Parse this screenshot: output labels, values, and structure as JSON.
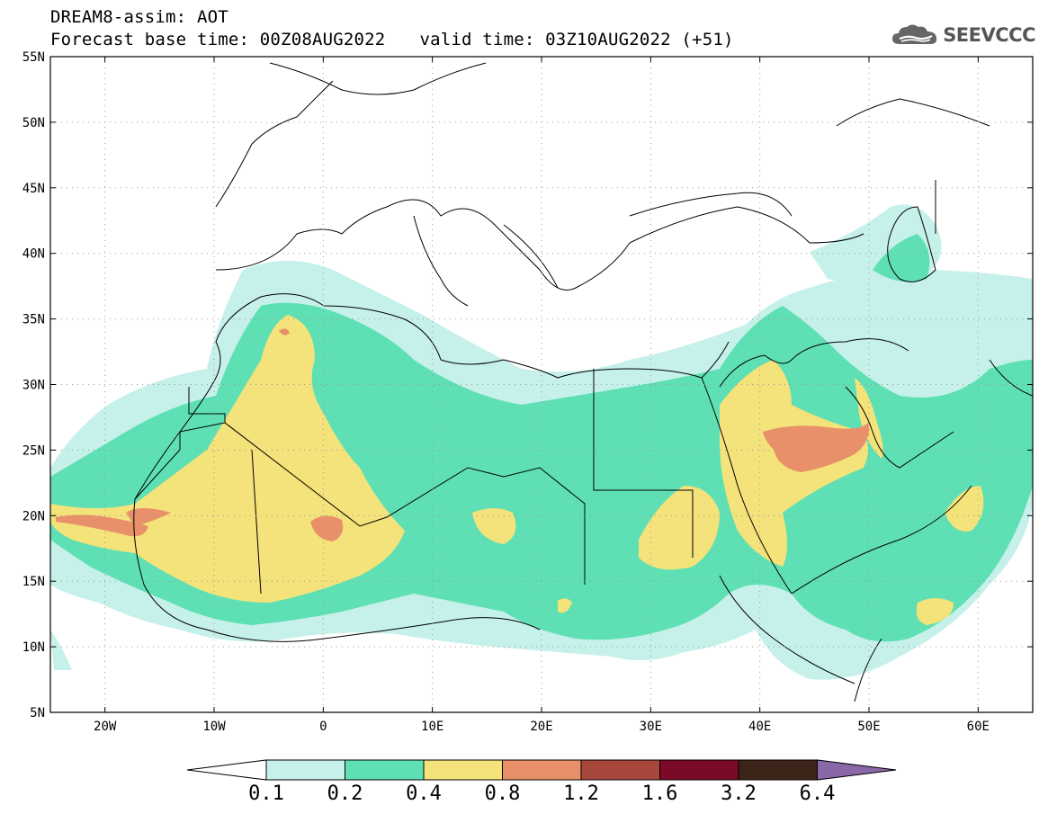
{
  "title": {
    "line1": "DREAM8-assim: AOT",
    "base_time": "Forecast base time: 00Z08AUG2022",
    "valid_time": "valid time: 03Z10AUG2022 (+51)"
  },
  "logo": {
    "text": "SEEVCCC",
    "icon": "cloud-icon"
  },
  "map": {
    "longitude_range": [
      -25,
      65
    ],
    "latitude_range": [
      5,
      55
    ],
    "lon_ticks": [
      {
        "value": -20,
        "label": "20W"
      },
      {
        "value": -10,
        "label": "10W"
      },
      {
        "value": 0,
        "label": "0"
      },
      {
        "value": 10,
        "label": "10E"
      },
      {
        "value": 20,
        "label": "20E"
      },
      {
        "value": 30,
        "label": "30E"
      },
      {
        "value": 40,
        "label": "40E"
      },
      {
        "value": 50,
        "label": "50E"
      },
      {
        "value": 60,
        "label": "60E"
      }
    ],
    "lat_ticks": [
      {
        "value": 5,
        "label": "5N"
      },
      {
        "value": 10,
        "label": "10N"
      },
      {
        "value": 15,
        "label": "15N"
      },
      {
        "value": 20,
        "label": "20N"
      },
      {
        "value": 25,
        "label": "25N"
      },
      {
        "value": 30,
        "label": "30N"
      },
      {
        "value": 35,
        "label": "35N"
      },
      {
        "value": 40,
        "label": "40N"
      },
      {
        "value": 45,
        "label": "45N"
      },
      {
        "value": 50,
        "label": "50N"
      },
      {
        "value": 55,
        "label": "55N"
      }
    ],
    "grid": "dotted"
  },
  "colorbar": {
    "boundaries": [
      "0.1",
      "0.2",
      "0.4",
      "0.8",
      "1.2",
      "1.6",
      "3.2",
      "6.4"
    ],
    "under_color": "#ffffff",
    "colors": [
      "#c6f0ea",
      "#5fe0b4",
      "#f4e27a",
      "#e8906a",
      "#a8483c",
      "#7a0a28",
      "#3c2418"
    ],
    "over_color": "#8a68a8"
  }
}
